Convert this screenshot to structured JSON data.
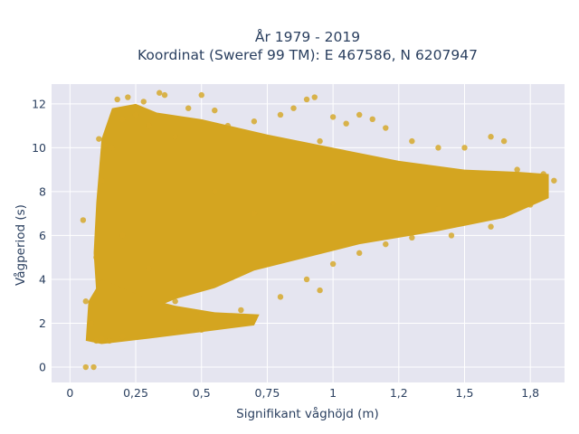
{
  "chart_data": {
    "type": "scatter",
    "title_line1": "År 1979 - 2019",
    "title_line2": "Koordinat (Sweref 99 TM): E 467586, N 6207947",
    "xlabel": "Signifikant våghöjd (m)",
    "ylabel": "Vågperiod (s)",
    "xlim": [
      -0.07,
      1.88
    ],
    "ylim": [
      -0.7,
      12.9
    ],
    "x_ticks": [
      {
        "value": 0,
        "label": "0"
      },
      {
        "value": 0.25,
        "label": "0,25"
      },
      {
        "value": 0.5,
        "label": "0,5"
      },
      {
        "value": 0.75,
        "label": "0,75"
      },
      {
        "value": 1,
        "label": "1"
      },
      {
        "value": 1.25,
        "label": "1,2"
      },
      {
        "value": 1.5,
        "label": "1,5"
      },
      {
        "value": 1.75,
        "label": "1,8"
      }
    ],
    "y_ticks": [
      {
        "value": 0,
        "label": "0"
      },
      {
        "value": 2,
        "label": "2"
      },
      {
        "value": 4,
        "label": "4"
      },
      {
        "value": 6,
        "label": "6"
      },
      {
        "value": 8,
        "label": "8"
      },
      {
        "value": 10,
        "label": "10"
      },
      {
        "value": 12,
        "label": "12"
      }
    ],
    "grid": true,
    "legend": "none",
    "marker_color": "#d4a520",
    "background_color": "#e5e5f0",
    "points": [
      [
        0.06,
        0.0
      ],
      [
        0.09,
        0.0
      ],
      [
        0.05,
        6.7
      ],
      [
        0.06,
        3.0
      ],
      [
        0.08,
        2.0
      ],
      [
        0.1,
        1.2
      ],
      [
        0.12,
        1.3
      ],
      [
        0.15,
        1.2
      ],
      [
        0.2,
        1.4
      ],
      [
        0.3,
        1.5
      ],
      [
        0.4,
        1.6
      ],
      [
        0.5,
        1.7
      ],
      [
        0.6,
        1.9
      ],
      [
        0.7,
        2.2
      ],
      [
        0.65,
        2.6
      ],
      [
        0.5,
        2.4
      ],
      [
        0.4,
        3.0
      ],
      [
        0.3,
        4.5
      ],
      [
        0.2,
        6.0
      ],
      [
        0.1,
        5.0
      ],
      [
        0.12,
        8.5
      ],
      [
        0.13,
        10.1
      ],
      [
        0.11,
        10.4
      ],
      [
        0.16,
        10.0
      ],
      [
        0.18,
        12.2
      ],
      [
        0.2,
        11.3
      ],
      [
        0.22,
        12.3
      ],
      [
        0.25,
        11.5
      ],
      [
        0.28,
        12.1
      ],
      [
        0.3,
        11.0
      ],
      [
        0.34,
        12.5
      ],
      [
        0.36,
        12.4
      ],
      [
        0.4,
        10.5
      ],
      [
        0.45,
        11.8
      ],
      [
        0.5,
        12.4
      ],
      [
        0.55,
        11.7
      ],
      [
        0.6,
        11.0
      ],
      [
        0.7,
        11.2
      ],
      [
        0.8,
        11.5
      ],
      [
        0.85,
        11.8
      ],
      [
        0.9,
        12.2
      ],
      [
        0.93,
        12.3
      ],
      [
        0.95,
        10.3
      ],
      [
        1.0,
        11.4
      ],
      [
        1.05,
        11.1
      ],
      [
        1.1,
        11.5
      ],
      [
        1.15,
        11.3
      ],
      [
        1.2,
        10.9
      ],
      [
        1.3,
        10.3
      ],
      [
        1.4,
        10.0
      ],
      [
        1.5,
        10.0
      ],
      [
        1.6,
        10.5
      ],
      [
        1.65,
        10.3
      ],
      [
        1.7,
        9.0
      ],
      [
        1.8,
        8.8
      ],
      [
        1.84,
        8.5
      ],
      [
        1.75,
        7.4
      ],
      [
        1.6,
        6.4
      ],
      [
        1.45,
        6.0
      ],
      [
        1.3,
        5.9
      ],
      [
        1.2,
        5.6
      ],
      [
        1.1,
        5.2
      ],
      [
        1.0,
        4.7
      ],
      [
        0.9,
        4.0
      ],
      [
        0.8,
        3.2
      ],
      [
        0.95,
        3.5
      ],
      [
        0.55,
        8.0
      ],
      [
        0.7,
        7.0
      ],
      [
        1.0,
        7.5
      ],
      [
        1.4,
        7.2
      ]
    ]
  }
}
